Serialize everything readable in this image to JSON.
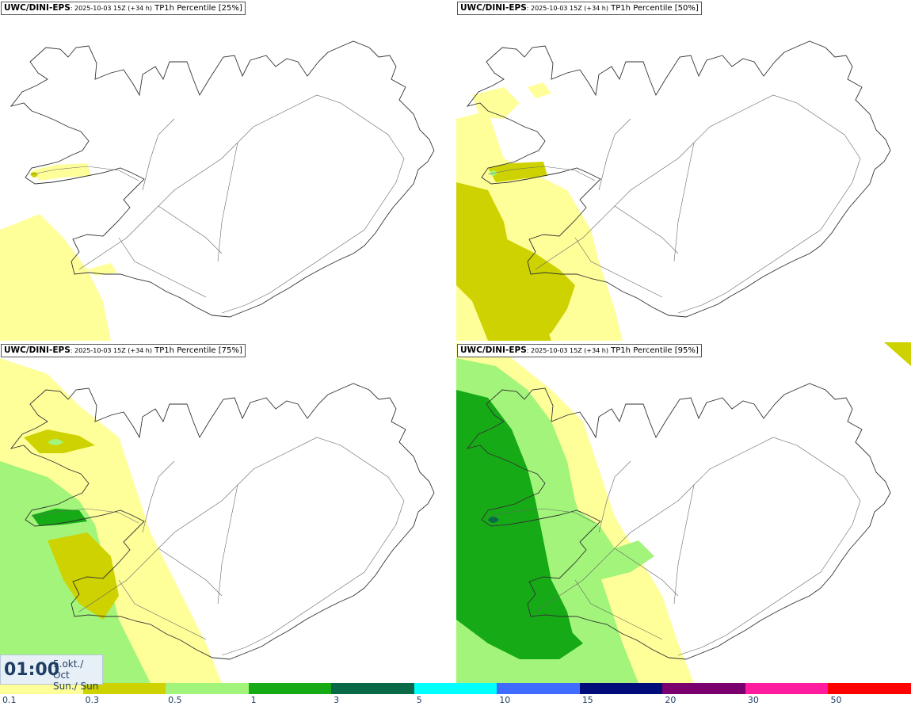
{
  "panels": [
    {
      "model": "UWC/DINI-EPS",
      "run": ": 2025-10-03 15Z (+34 h)",
      "product": "TP1h Percentile [25%]",
      "level": 1
    },
    {
      "model": "UWC/DINI-EPS",
      "run": ": 2025-10-03 15Z (+34 h)",
      "product": "TP1h Percentile [50%]",
      "level": 2
    },
    {
      "model": "UWC/DINI-EPS",
      "run": ": 2025-10-03 15Z (+34 h)",
      "product": "TP1h Percentile [75%]",
      "level": 3
    },
    {
      "model": "UWC/DINI-EPS",
      "run": ": 2025-10-03 15Z (+34 h)",
      "product": "TP1h Percentile [95%]",
      "level": 4
    }
  ],
  "valid_time": {
    "time": "01:00",
    "date_line1": "5.okt./ Oct",
    "date_line2": "Sun./ Sun"
  },
  "colorbar": {
    "labels": [
      "0.1",
      "0.3",
      "0.5",
      "1",
      "3",
      "5",
      "10",
      "15",
      "20",
      "30",
      "50"
    ],
    "colors": [
      "#ffff9a",
      "#cdd200",
      "#a2f57a",
      "#16ab16",
      "#0a6a48",
      "#00ffff",
      "#3f6bff",
      "#000c7a",
      "#7a0070",
      "#ff1c9e",
      "#ff0000"
    ]
  }
}
